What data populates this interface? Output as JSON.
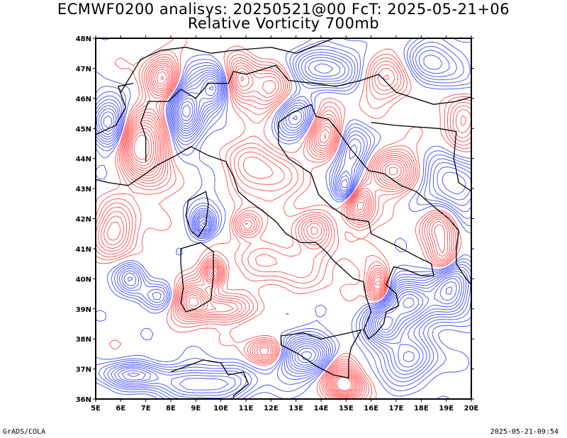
{
  "title_line1": "ECMWF0200 analisys: 20250521@00 FcT: 2025-05-21+06",
  "title_line2": "Relative Vorticity 700mb",
  "lat_labels": [
    "36N",
    "37N",
    "38N",
    "39N",
    "40N",
    "41N",
    "42N",
    "43N",
    "44N",
    "45N",
    "46N",
    "47N",
    "48N"
  ],
  "lon_labels": [
    "5E",
    "6E",
    "7E",
    "8E",
    "9E",
    "10E",
    "11E",
    "12E",
    "13E",
    "14E",
    "15E",
    "16E",
    "17E",
    "18E",
    "19E",
    "20E"
  ],
  "map_extent": {
    "lon": [
      5,
      20
    ],
    "lat": [
      36,
      48
    ]
  },
  "field": "relative vorticity",
  "level": "700mb",
  "colors": {
    "positive": "#ff4b4b",
    "negative": "#3c4bff",
    "zero": "#9a9a9a",
    "coast": "#000000"
  },
  "footer_left": "GrADS/COLA",
  "footer_right": "2025-05-21-09:54"
}
